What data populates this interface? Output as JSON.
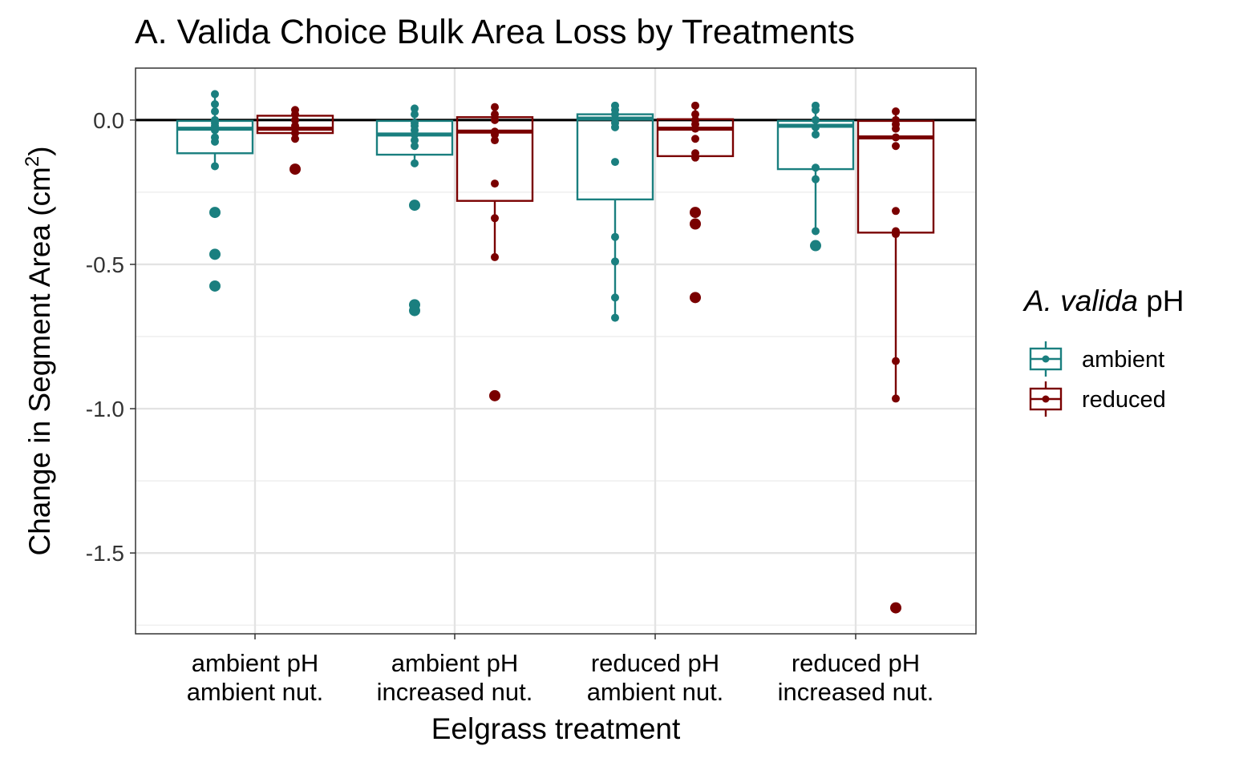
{
  "chart_data": {
    "type": "boxplot",
    "title": "A. Valida Choice Bulk Area Loss by Treatments",
    "xlabel": "Eelgrass treatment",
    "ylabel_main": "Change in Segment Area (cm",
    "ylabel_sup": "2",
    "ylabel_end": ")",
    "ylim": [
      -1.78,
      0.18
    ],
    "yticks": [
      0.0,
      -0.5,
      -1.0,
      -1.5
    ],
    "ytick_labels": [
      "0.0",
      "-0.5",
      "-1.0",
      "-1.5"
    ],
    "grid": true,
    "reference_line": 0.0,
    "categories": [
      {
        "line1": "ambient pH",
        "line2": "ambient nut."
      },
      {
        "line1": "ambient pH",
        "line2": "increased nut."
      },
      {
        "line1": "reduced pH",
        "line2": "ambient nut."
      },
      {
        "line1": "reduced pH",
        "line2": "increased nut."
      }
    ],
    "legend": {
      "title_italic": "A. valida",
      "title_rest": " pH",
      "position": "right"
    },
    "series": [
      {
        "name": "ambient",
        "color": "#1a7f7f",
        "boxes": [
          {
            "q1": -0.115,
            "median": -0.03,
            "q3": -0.003,
            "whisker_low": -0.16,
            "whisker_high": 0.09,
            "points": [
              0.09,
              0.055,
              0.03,
              0.0,
              -0.01,
              -0.02,
              -0.035,
              -0.06,
              -0.075,
              -0.16,
              -0.32,
              -0.465,
              -0.575
            ],
            "outliers": [
              -0.32,
              -0.465,
              -0.575
            ]
          },
          {
            "q1": -0.12,
            "median": -0.05,
            "q3": -0.003,
            "whisker_low": -0.15,
            "whisker_high": 0.04,
            "points": [
              0.04,
              0.02,
              -0.01,
              -0.02,
              -0.035,
              -0.05,
              -0.07,
              -0.09,
              -0.15,
              -0.295,
              -0.64,
              -0.66
            ],
            "outliers": [
              -0.295,
              -0.64,
              -0.66
            ]
          },
          {
            "q1": -0.275,
            "median": 0.005,
            "q3": 0.02,
            "whisker_low": -0.685,
            "whisker_high": 0.05,
            "points": [
              0.05,
              0.035,
              0.02,
              0.005,
              -0.01,
              -0.025,
              -0.145,
              -0.405,
              -0.49,
              -0.615,
              -0.685
            ],
            "outliers": []
          },
          {
            "q1": -0.17,
            "median": -0.02,
            "q3": -0.003,
            "whisker_low": -0.385,
            "whisker_high": 0.05,
            "points": [
              0.05,
              0.035,
              0.0,
              -0.025,
              -0.05,
              -0.165,
              -0.205,
              -0.385,
              -0.435
            ],
            "outliers": [
              -0.435
            ]
          }
        ]
      },
      {
        "name": "reduced",
        "color": "#7a0000",
        "boxes": [
          {
            "q1": -0.045,
            "median": -0.03,
            "q3": 0.015,
            "whisker_low": -0.065,
            "whisker_high": 0.035,
            "points": [
              0.035,
              0.02,
              0.0,
              -0.02,
              -0.03,
              -0.045,
              -0.065,
              -0.17
            ],
            "outliers": [
              -0.17
            ]
          },
          {
            "q1": -0.28,
            "median": -0.04,
            "q3": 0.01,
            "whisker_low": -0.48,
            "whisker_high": 0.045,
            "points": [
              0.045,
              0.02,
              0.0,
              -0.04,
              -0.05,
              -0.07,
              -0.22,
              -0.34,
              -0.475,
              -0.955
            ],
            "outliers": [
              -0.955
            ]
          },
          {
            "q1": -0.125,
            "median": -0.03,
            "q3": 0.003,
            "whisker_low": -0.135,
            "whisker_high": 0.05,
            "points": [
              0.05,
              0.02,
              0.0,
              -0.015,
              -0.03,
              -0.065,
              -0.115,
              -0.13,
              -0.32,
              -0.36,
              -0.615
            ],
            "outliers": [
              -0.32,
              -0.36,
              -0.615
            ]
          },
          {
            "q1": -0.39,
            "median": -0.06,
            "q3": -0.003,
            "whisker_low": -0.965,
            "whisker_high": 0.03,
            "points": [
              0.03,
              0.0,
              -0.015,
              -0.03,
              -0.06,
              -0.09,
              -0.315,
              -0.385,
              -0.395,
              -0.835,
              -0.965,
              -1.69
            ],
            "outliers": [
              -1.69
            ]
          }
        ]
      }
    ]
  }
}
